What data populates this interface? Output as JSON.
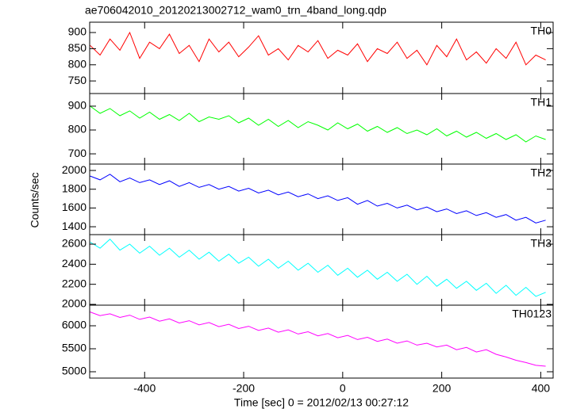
{
  "chart_data": [
    {
      "type": "line",
      "title": "ae706042010_20120213002712_wam0_trn_4band_long.qdp",
      "x": [
        -510,
        -490,
        -470,
        -450,
        -430,
        -410,
        -390,
        -370,
        -350,
        -330,
        -310,
        -290,
        -270,
        -250,
        -230,
        -210,
        -190,
        -170,
        -150,
        -130,
        -110,
        -90,
        -70,
        -50,
        -30,
        -10,
        10,
        30,
        50,
        70,
        90,
        110,
        130,
        150,
        170,
        190,
        210,
        230,
        250,
        270,
        290,
        310,
        330,
        350,
        370,
        390,
        410
      ],
      "series": [
        {
          "name": "TH0",
          "color": "#ff0000",
          "values": [
            860,
            830,
            880,
            845,
            900,
            820,
            870,
            850,
            895,
            835,
            860,
            810,
            880,
            840,
            870,
            825,
            855,
            890,
            830,
            850,
            815,
            860,
            840,
            875,
            820,
            845,
            830,
            865,
            810,
            850,
            835,
            870,
            820,
            845,
            800,
            860,
            825,
            880,
            815,
            840,
            805,
            850,
            820,
            870,
            800,
            830,
            815
          ]
        }
      ],
      "xlim": [
        -511,
        425
      ],
      "ylim": [
        711,
        932
      ],
      "yticks": [
        750,
        800,
        850,
        900
      ]
    },
    {
      "type": "line",
      "x": [
        -510,
        -490,
        -470,
        -450,
        -430,
        -410,
        -390,
        -370,
        -350,
        -330,
        -310,
        -290,
        -270,
        -250,
        -230,
        -210,
        -190,
        -170,
        -150,
        -130,
        -110,
        -90,
        -70,
        -50,
        -30,
        -10,
        10,
        30,
        50,
        70,
        90,
        110,
        130,
        150,
        170,
        190,
        210,
        230,
        250,
        270,
        290,
        310,
        330,
        350,
        370,
        390,
        410
      ],
      "series": [
        {
          "name": "TH1",
          "color": "#00ff00",
          "values": [
            900,
            870,
            890,
            860,
            880,
            850,
            875,
            845,
            865,
            840,
            870,
            835,
            855,
            845,
            860,
            830,
            850,
            820,
            845,
            815,
            840,
            810,
            835,
            820,
            800,
            830,
            805,
            825,
            795,
            815,
            790,
            810,
            785,
            800,
            780,
            805,
            775,
            795,
            770,
            790,
            765,
            785,
            760,
            780,
            750,
            775,
            760
          ]
        }
      ],
      "xlim": [
        -511,
        425
      ],
      "ylim": [
        657,
        953
      ],
      "yticks": [
        700,
        800,
        900
      ]
    },
    {
      "type": "line",
      "y_label": "Counts/sec",
      "x": [
        -510,
        -490,
        -470,
        -450,
        -430,
        -410,
        -390,
        -370,
        -350,
        -330,
        -310,
        -290,
        -270,
        -250,
        -230,
        -210,
        -190,
        -170,
        -150,
        -130,
        -110,
        -90,
        -70,
        -50,
        -30,
        -10,
        10,
        30,
        50,
        70,
        90,
        110,
        130,
        150,
        170,
        190,
        210,
        230,
        250,
        270,
        290,
        310,
        330,
        350,
        370,
        390,
        410
      ],
      "series": [
        {
          "name": "TH2",
          "color": "#0000ff",
          "values": [
            1940,
            1900,
            1960,
            1880,
            1920,
            1870,
            1900,
            1850,
            1890,
            1830,
            1870,
            1820,
            1850,
            1800,
            1830,
            1780,
            1810,
            1760,
            1790,
            1740,
            1770,
            1720,
            1750,
            1700,
            1730,
            1680,
            1710,
            1640,
            1680,
            1620,
            1650,
            1600,
            1630,
            1580,
            1610,
            1560,
            1590,
            1540,
            1570,
            1520,
            1550,
            1500,
            1530,
            1470,
            1500,
            1440,
            1470
          ]
        }
      ],
      "xlim": [
        -511,
        425
      ],
      "ylim": [
        1316,
        2068
      ],
      "yticks": [
        1400,
        1600,
        1800,
        2000
      ]
    },
    {
      "type": "line",
      "x": [
        -510,
        -490,
        -470,
        -450,
        -430,
        -410,
        -390,
        -370,
        -350,
        -330,
        -310,
        -290,
        -270,
        -250,
        -230,
        -210,
        -190,
        -170,
        -150,
        -130,
        -110,
        -90,
        -70,
        -50,
        -30,
        -10,
        10,
        30,
        50,
        70,
        90,
        110,
        130,
        150,
        170,
        190,
        210,
        230,
        250,
        270,
        290,
        310,
        330,
        350,
        370,
        390,
        410
      ],
      "series": [
        {
          "name": "TH3",
          "color": "#00ffff",
          "values": [
            2620,
            2560,
            2650,
            2540,
            2600,
            2510,
            2580,
            2490,
            2560,
            2470,
            2540,
            2450,
            2520,
            2430,
            2500,
            2410,
            2470,
            2380,
            2450,
            2360,
            2430,
            2340,
            2410,
            2320,
            2390,
            2290,
            2360,
            2270,
            2340,
            2250,
            2320,
            2230,
            2300,
            2200,
            2280,
            2180,
            2250,
            2160,
            2230,
            2140,
            2210,
            2110,
            2190,
            2090,
            2170,
            2080,
            2120
          ]
        }
      ],
      "xlim": [
        -511,
        425
      ],
      "ylim": [
        1992,
        2695
      ],
      "yticks": [
        2000,
        2200,
        2400,
        2600
      ]
    },
    {
      "type": "line",
      "x_label": "Time [sec] 0 = 2012/02/13 00:27:12",
      "x": [
        -510,
        -490,
        -470,
        -450,
        -430,
        -410,
        -390,
        -370,
        -350,
        -330,
        -310,
        -290,
        -270,
        -250,
        -230,
        -210,
        -190,
        -170,
        -150,
        -130,
        -110,
        -90,
        -70,
        -50,
        -30,
        -10,
        10,
        30,
        50,
        70,
        90,
        110,
        130,
        150,
        170,
        190,
        210,
        230,
        250,
        270,
        290,
        310,
        330,
        350,
        370,
        390,
        410
      ],
      "series": [
        {
          "name": "TH0123",
          "color": "#ff00ff",
          "values": [
            6300,
            6220,
            6260,
            6180,
            6230,
            6140,
            6190,
            6100,
            6150,
            6060,
            6110,
            6020,
            6070,
            5980,
            6030,
            5940,
            5990,
            5900,
            5950,
            5860,
            5910,
            5820,
            5870,
            5780,
            5830,
            5740,
            5790,
            5700,
            5750,
            5660,
            5710,
            5620,
            5670,
            5580,
            5620,
            5540,
            5580,
            5480,
            5530,
            5430,
            5480,
            5380,
            5320,
            5250,
            5200,
            5140,
            5120
          ]
        }
      ],
      "xlim": [
        -511,
        425
      ],
      "ylim": [
        4862,
        6448
      ],
      "yticks": [
        5000,
        5500,
        6000
      ],
      "xticks": [
        -400,
        -200,
        0,
        200,
        400
      ]
    }
  ]
}
